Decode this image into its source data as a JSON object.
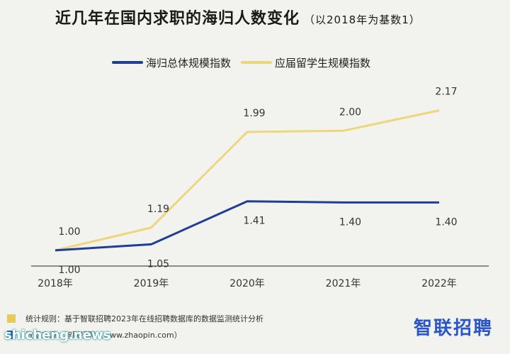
{
  "title": "近几年在国内求职的海归人数变化",
  "subtitle": "（以2018年为基数1）",
  "chart_data": {
    "type": "line",
    "categories": [
      "2018年",
      "2019年",
      "2020年",
      "2021年",
      "2022年"
    ],
    "series": [
      {
        "name": "海归总体规模指数",
        "color": "#1f3f94",
        "values": [
          1.0,
          1.05,
          1.41,
          1.4,
          1.4
        ],
        "labels": [
          "1.00",
          "1.05",
          "1.41",
          "1.40",
          "1.40"
        ]
      },
      {
        "name": "应届留学生规模指数",
        "color": "#eed67a",
        "values": [
          1.0,
          1.19,
          1.99,
          2.0,
          2.17
        ],
        "labels": [
          "1.00",
          "1.19",
          "1.99",
          "2.00",
          "2.17"
        ]
      }
    ],
    "ylim": [
      0.4,
      2.5
    ],
    "grid": false,
    "legend": "top-center"
  },
  "footer": {
    "rule_color": "#e9c95a",
    "rule_text": "统计规则：基于智联招聘2023年在线招聘数据库的数据监测统计分析",
    "source_color": "#2346b8",
    "source_text": "数据来源：智联招聘（www.zhaopin.com）"
  },
  "logo_text": "智联招聘",
  "watermark_text": "shicheng.news"
}
